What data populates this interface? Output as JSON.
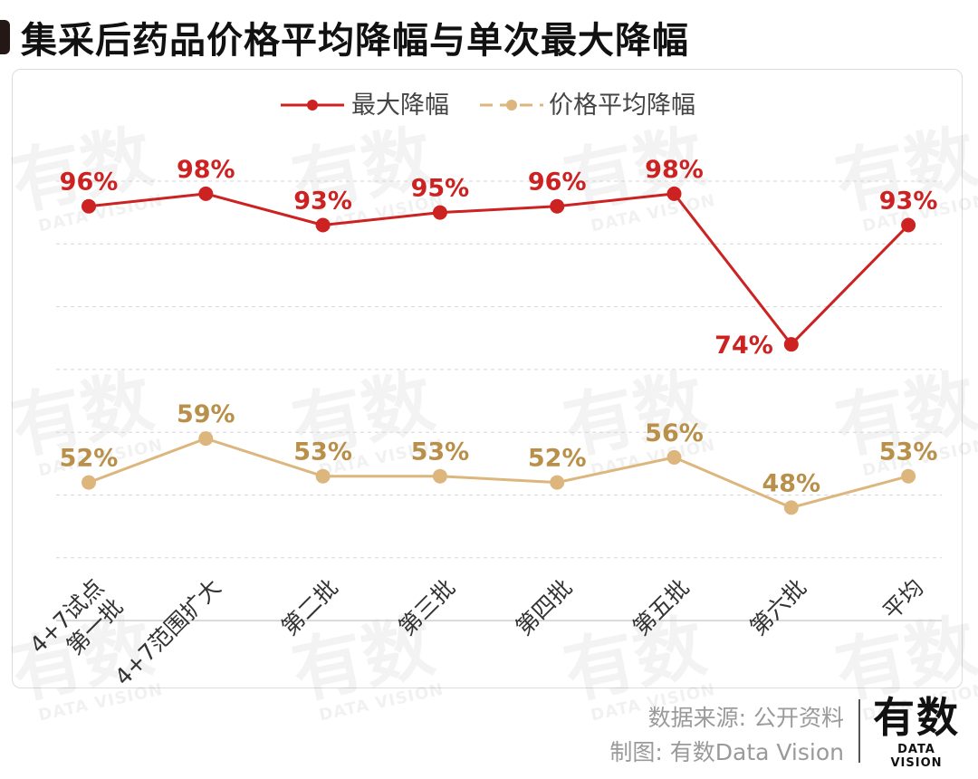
{
  "title": "集采后药品价格平均降幅与单次最大降幅",
  "legend": {
    "max_label": "最大降幅",
    "avg_label": "价格平均降幅"
  },
  "colors": {
    "max": "#cc2222",
    "avg": "#ddb67d",
    "avg_label": "#b8904a"
  },
  "chart_data": {
    "type": "line",
    "title": "集采后药品价格平均降幅与单次最大降幅",
    "categories": [
      "4+7试点第一批",
      "4+7范围扩大",
      "第二批",
      "第三批",
      "第四批",
      "第五批",
      "第六批",
      "平均"
    ],
    "category_lines": [
      [
        "4+7试点",
        "第一批"
      ],
      [
        "4+7范围扩大"
      ],
      [
        "第二批"
      ],
      [
        "第三批"
      ],
      [
        "第四批"
      ],
      [
        "第五批"
      ],
      [
        "第六批"
      ],
      [
        "平均"
      ]
    ],
    "series": [
      {
        "name": "最大降幅",
        "values": [
          96,
          98,
          93,
          95,
          96,
          98,
          74,
          93
        ],
        "labels": [
          "96%",
          "98%",
          "93%",
          "95%",
          "96%",
          "98%",
          "74%",
          "93%"
        ]
      },
      {
        "name": "价格平均降幅",
        "values": [
          52,
          59,
          53,
          53,
          52,
          56,
          48,
          53
        ],
        "labels": [
          "52%",
          "59%",
          "53%",
          "53%",
          "52%",
          "56%",
          "48%",
          "53%"
        ]
      }
    ],
    "ylim": [
      30,
      100
    ],
    "ytick_step": 10,
    "grid": true,
    "legend_position": "top-center",
    "xlabel": "",
    "ylabel": ""
  },
  "watermark": {
    "main": "有数",
    "sub": "DATA VISION"
  },
  "footer": {
    "source": "数据来源: 公开资料",
    "credit": "制图: 有数Data Vision"
  },
  "brand": {
    "main": "有数",
    "sub": "DATA VISION"
  }
}
